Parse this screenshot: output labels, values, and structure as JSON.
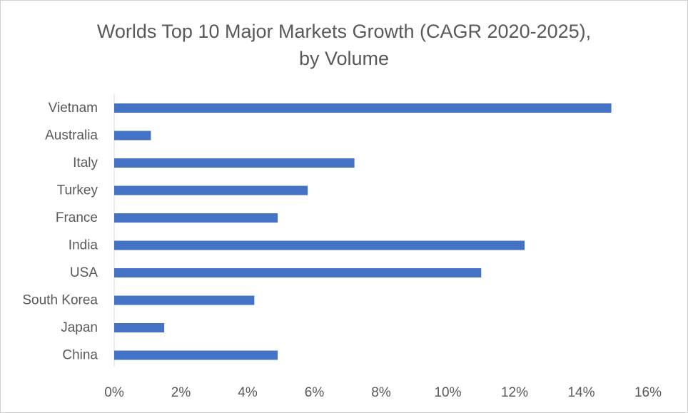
{
  "chart_data": {
    "type": "bar",
    "orientation": "horizontal",
    "title_line1": "Worlds Top 10 Major Markets Growth (CAGR 2020-2025),",
    "title_line2": "by Volume",
    "categories": [
      "Vietnam",
      "Australia",
      "Italy",
      "Turkey",
      "France",
      "India",
      "USA",
      "South Korea",
      "Japan",
      "China"
    ],
    "values": [
      14.9,
      1.1,
      7.2,
      5.8,
      4.9,
      12.3,
      11.0,
      4.2,
      1.5,
      4.9
    ],
    "xlim": [
      0,
      16
    ],
    "xticks": [
      0,
      2,
      4,
      6,
      8,
      10,
      12,
      14,
      16
    ],
    "xtick_labels": [
      "0%",
      "2%",
      "4%",
      "6%",
      "8%",
      "10%",
      "12%",
      "14%",
      "16%"
    ],
    "xlabel": "",
    "ylabel": "",
    "grid": false,
    "legend": "none",
    "bar_color": "#4472C4"
  }
}
